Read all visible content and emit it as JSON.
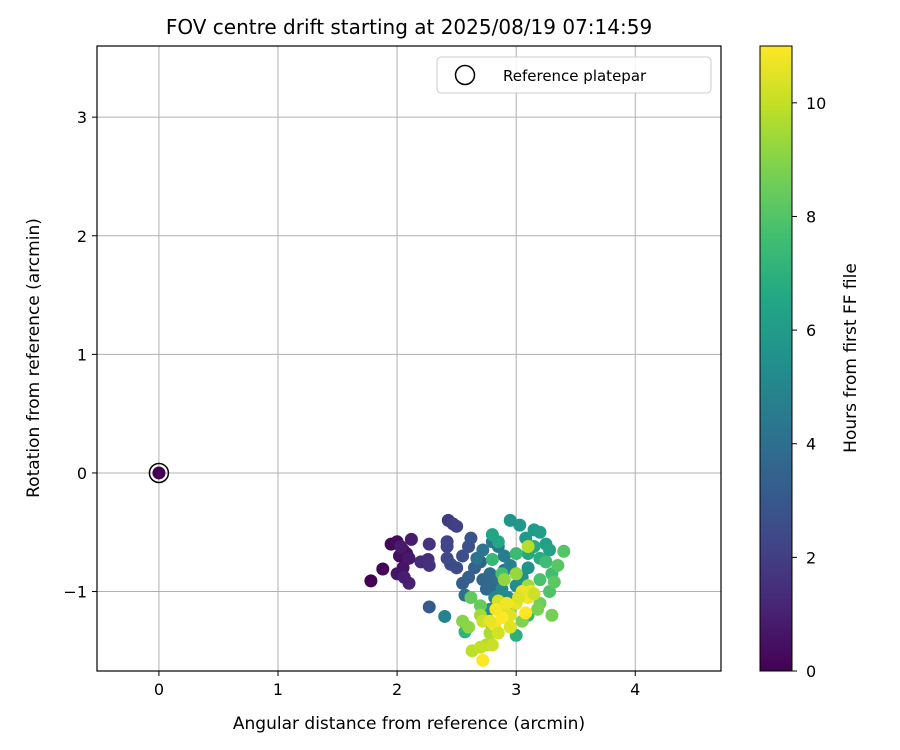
{
  "chart_data": {
    "type": "scatter",
    "title": "FOV centre drift starting at 2025/08/19 07:14:59",
    "xlabel": "Angular distance from reference (arcmin)",
    "ylabel": "Rotation from reference (arcmin)",
    "xlim": [
      -0.52,
      4.72
    ],
    "ylim": [
      -1.67,
      3.6
    ],
    "xticks": [
      0,
      1,
      2,
      3,
      4
    ],
    "yticks": [
      -1,
      0,
      1,
      2,
      3
    ],
    "xtick_labels": [
      "0",
      "1",
      "2",
      "3",
      "4"
    ],
    "ytick_labels": [
      "−1",
      "0",
      "1",
      "2",
      "3"
    ],
    "grid": true,
    "legend": {
      "position": "top-right",
      "label": "Reference platepar"
    },
    "reference_point": {
      "x": 0,
      "y": 0
    },
    "colorbar": {
      "label": "Hours from first FF file",
      "range": [
        0,
        11
      ],
      "ticks": [
        0,
        2,
        4,
        6,
        8,
        10
      ],
      "tick_labels": [
        "0",
        "2",
        "4",
        "6",
        "8",
        "10"
      ],
      "colormap": "viridis"
    },
    "points": [
      [
        1.78,
        -0.91,
        0.0
      ],
      [
        1.88,
        -0.81,
        0.1
      ],
      [
        1.95,
        -0.6,
        0.2
      ],
      [
        2.0,
        -0.58,
        0.3
      ],
      [
        2.02,
        -0.7,
        0.4
      ],
      [
        2.05,
        -0.65,
        0.5
      ],
      [
        2.08,
        -0.68,
        0.5
      ],
      [
        2.0,
        -0.85,
        0.6
      ],
      [
        2.05,
        -0.8,
        0.6
      ],
      [
        2.1,
        -0.72,
        0.7
      ],
      [
        2.12,
        -0.56,
        0.8
      ],
      [
        2.03,
        -0.62,
        0.8
      ],
      [
        2.1,
        -0.93,
        1.0
      ],
      [
        2.06,
        -0.88,
        0.9
      ],
      [
        2.2,
        -0.75,
        1.3
      ],
      [
        2.26,
        -0.73,
        1.4
      ],
      [
        2.27,
        -0.78,
        1.5
      ],
      [
        2.27,
        -0.6,
        1.6
      ],
      [
        2.43,
        -0.4,
        1.9
      ],
      [
        2.47,
        -0.43,
        2.0
      ],
      [
        2.5,
        -0.45,
        2.1
      ],
      [
        2.42,
        -0.58,
        2.2
      ],
      [
        2.42,
        -0.62,
        2.3
      ],
      [
        2.42,
        -0.72,
        2.4
      ],
      [
        2.45,
        -0.77,
        2.5
      ],
      [
        2.5,
        -0.8,
        2.5
      ],
      [
        2.55,
        -0.7,
        2.6
      ],
      [
        2.6,
        -0.62,
        2.7
      ],
      [
        2.62,
        -0.55,
        2.8
      ],
      [
        2.27,
        -1.13,
        3.1
      ],
      [
        2.55,
        -0.93,
        3.2
      ],
      [
        2.6,
        -0.88,
        3.3
      ],
      [
        2.65,
        -0.8,
        3.4
      ],
      [
        2.7,
        -0.75,
        3.5
      ],
      [
        2.72,
        -0.9,
        3.6
      ],
      [
        2.75,
        -0.98,
        3.7
      ],
      [
        2.78,
        -0.85,
        3.8
      ],
      [
        2.8,
        -0.95,
        3.8
      ],
      [
        2.85,
        -0.88,
        3.9
      ],
      [
        2.9,
        -0.82,
        4.0
      ],
      [
        2.57,
        -1.03,
        4.1
      ],
      [
        2.67,
        -0.72,
        4.2
      ],
      [
        2.72,
        -0.65,
        4.3
      ],
      [
        2.8,
        -0.58,
        4.4
      ],
      [
        2.85,
        -0.62,
        4.5
      ],
      [
        2.9,
        -0.7,
        4.6
      ],
      [
        2.95,
        -0.78,
        4.7
      ],
      [
        3.0,
        -0.85,
        4.8
      ],
      [
        2.4,
        -1.21,
        4.9
      ],
      [
        2.82,
        -1.05,
        5.0
      ],
      [
        2.88,
        -0.98,
        5.1
      ],
      [
        2.93,
        -1.05,
        5.2
      ],
      [
        3.0,
        -0.95,
        5.3
      ],
      [
        2.78,
        -1.15,
        5.4
      ],
      [
        3.05,
        -0.88,
        5.5
      ],
      [
        3.1,
        -0.8,
        5.6
      ],
      [
        2.95,
        -0.4,
        5.7
      ],
      [
        3.03,
        -0.44,
        5.8
      ],
      [
        3.08,
        -0.55,
        5.9
      ],
      [
        3.15,
        -0.48,
        6.0
      ],
      [
        3.2,
        -0.5,
        6.1
      ],
      [
        3.25,
        -0.6,
        6.2
      ],
      [
        3.28,
        -0.65,
        6.3
      ],
      [
        2.8,
        -0.52,
        6.4
      ],
      [
        2.85,
        -0.58,
        6.5
      ],
      [
        3.1,
        -0.68,
        6.6
      ],
      [
        3.15,
        -0.62,
        6.7
      ],
      [
        3.2,
        -0.72,
        6.8
      ],
      [
        2.8,
        -1.3,
        6.9
      ],
      [
        3.0,
        -1.37,
        7.0
      ],
      [
        2.57,
        -1.34,
        7.1
      ],
      [
        3.1,
        -1.2,
        7.2
      ],
      [
        2.8,
        -0.73,
        7.3
      ],
      [
        3.0,
        -0.68,
        7.4
      ],
      [
        3.25,
        -0.75,
        7.5
      ],
      [
        3.3,
        -0.85,
        7.6
      ],
      [
        2.88,
        -0.85,
        7.7
      ],
      [
        3.2,
        -0.9,
        7.8
      ],
      [
        3.28,
        -1.0,
        7.9
      ],
      [
        3.4,
        -0.66,
        8.0
      ],
      [
        3.35,
        -0.78,
        8.1
      ],
      [
        3.32,
        -0.92,
        8.2
      ],
      [
        2.62,
        -1.05,
        8.3
      ],
      [
        2.7,
        -1.12,
        8.4
      ],
      [
        2.95,
        -1.15,
        8.5
      ],
      [
        3.2,
        -1.1,
        8.6
      ],
      [
        3.3,
        -1.2,
        8.7
      ],
      [
        3.18,
        -1.15,
        8.8
      ],
      [
        3.05,
        -1.25,
        8.9
      ],
      [
        2.55,
        -1.25,
        9.0
      ],
      [
        2.6,
        -1.3,
        9.1
      ],
      [
        2.9,
        -0.9,
        9.2
      ],
      [
        3.0,
        -0.85,
        9.3
      ],
      [
        3.1,
        -0.95,
        9.4
      ],
      [
        2.7,
        -1.2,
        9.5
      ],
      [
        2.78,
        -1.35,
        9.6
      ],
      [
        2.75,
        -1.45,
        9.7
      ],
      [
        3.1,
        -0.62,
        9.8
      ],
      [
        2.63,
        -1.5,
        9.9
      ],
      [
        2.7,
        -1.47,
        10.0
      ],
      [
        2.8,
        -1.45,
        10.1
      ],
      [
        2.72,
        -1.25,
        10.2
      ],
      [
        2.85,
        -1.08,
        10.3
      ],
      [
        2.9,
        -1.15,
        10.4
      ],
      [
        2.95,
        -1.2,
        10.5
      ],
      [
        3.0,
        -1.1,
        10.6
      ],
      [
        3.05,
        -1.0,
        10.7
      ],
      [
        3.1,
        -1.05,
        10.8
      ],
      [
        2.82,
        -1.28,
        10.9
      ],
      [
        2.88,
        -1.22,
        11.0
      ],
      [
        3.08,
        -1.18,
        11.0
      ],
      [
        2.72,
        -1.58,
        11.0
      ],
      [
        2.83,
        -1.15,
        10.9
      ],
      [
        2.92,
        -1.1,
        10.8
      ],
      [
        3.12,
        -1.0,
        10.7
      ],
      [
        2.78,
        -1.25,
        10.6
      ],
      [
        2.95,
        -1.3,
        10.5
      ],
      [
        3.02,
        -1.05,
        10.4
      ],
      [
        2.85,
        -1.35,
        10.3
      ],
      [
        3.15,
        -1.02,
        10.2
      ]
    ]
  }
}
